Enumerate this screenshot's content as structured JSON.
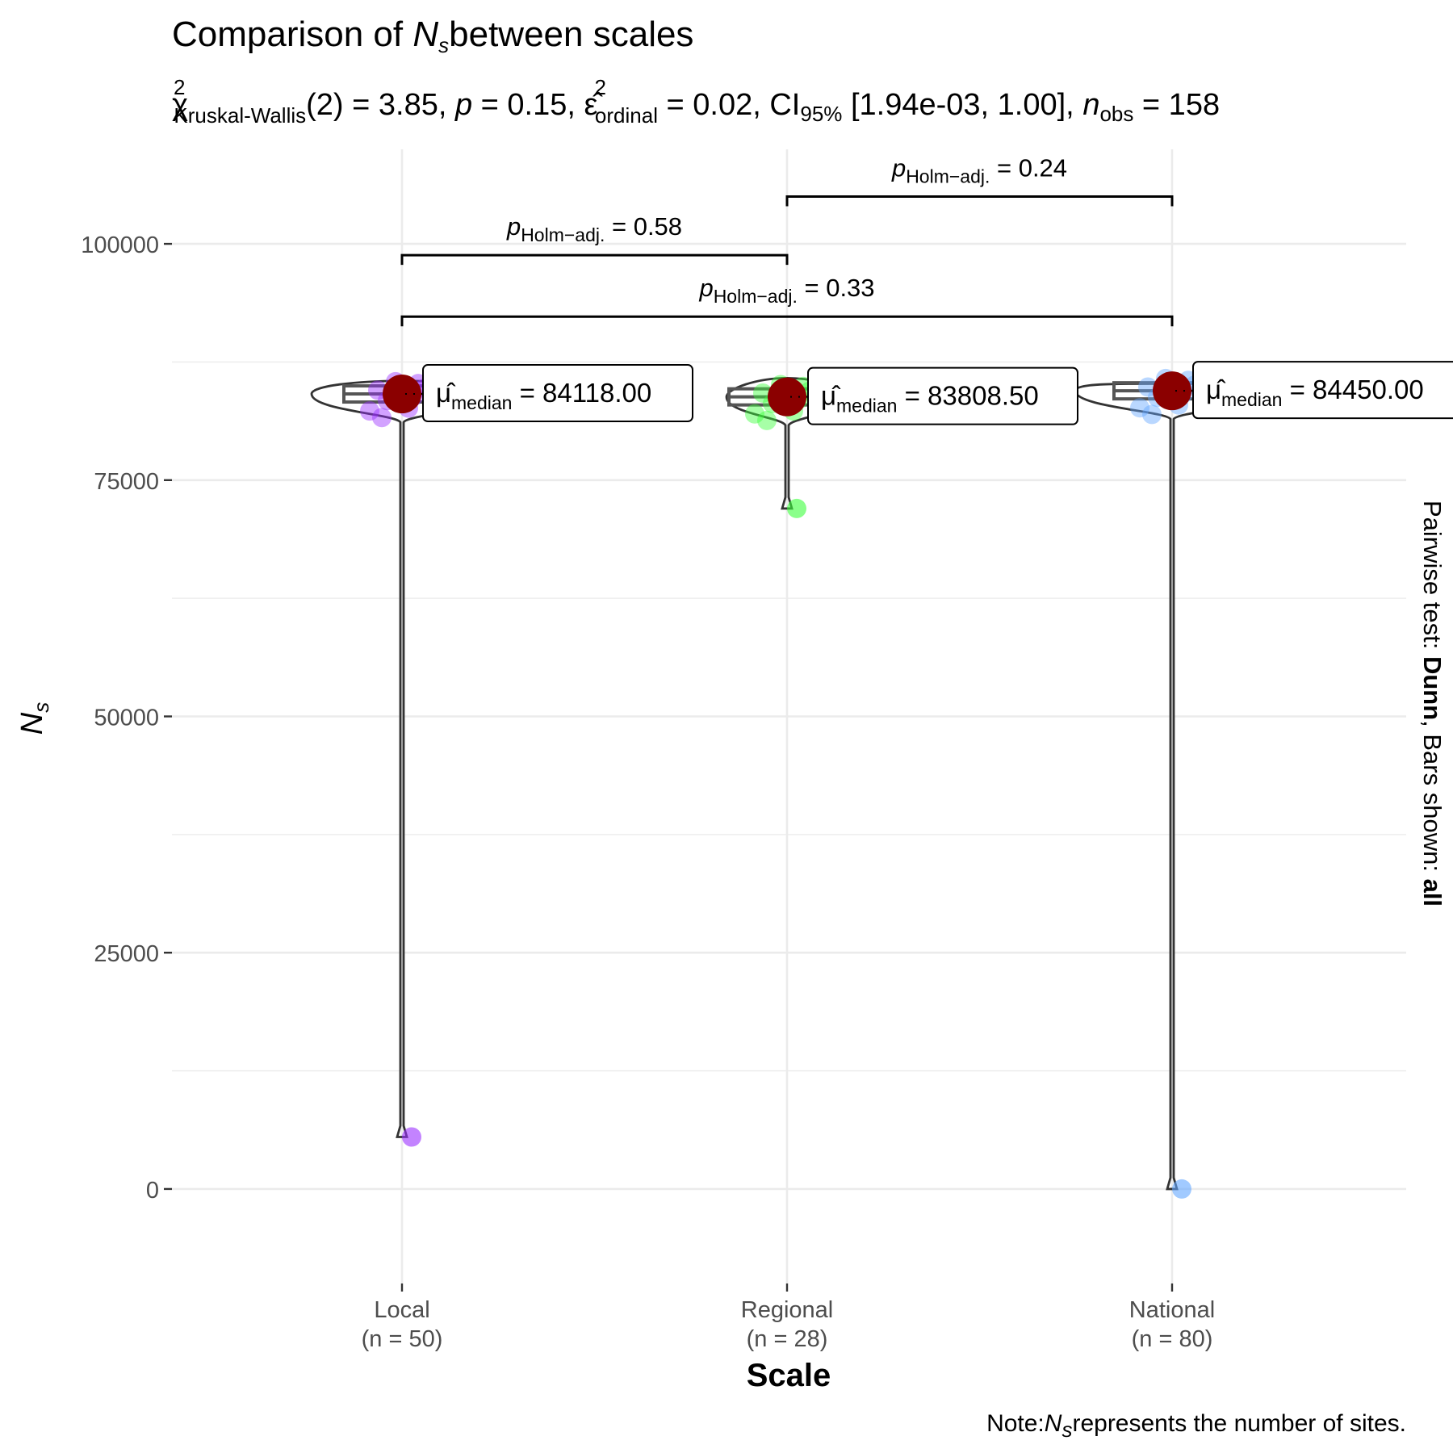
{
  "chart_data": {
    "type": "violin",
    "title_prefix": "Comparison of ",
    "title_symbol": "N",
    "title_symbol_sub": "s",
    "title_suffix": "between scales",
    "subtitle": {
      "chi": "χ",
      "chi_sup": "2",
      "chi_sub": "Kruskal-Wallis",
      "df": "(2) = 3.85, ",
      "p_sym": "p",
      "p_val": " = 0.15, ",
      "eps": "ε̂",
      "eps_sup": "2",
      "eps_sub": "ordinal",
      "eps_val": " = 0.02, CI",
      "ci_sub": "95%",
      "ci_val": " [1.94e-03, 1.00], ",
      "n_sym": "n",
      "n_sub": "obs",
      "n_val": " = 158"
    },
    "xlabel": "Scale",
    "ylabel_symbol": "N",
    "ylabel_sub": "s",
    "ylim": [
      -10000,
      110000
    ],
    "yticks": [
      0,
      25000,
      50000,
      75000,
      100000
    ],
    "ytick_labels": [
      "0",
      "25000",
      "50000",
      "75000",
      "100000"
    ],
    "categories": [
      {
        "name": "Local",
        "n_label": "(n = 50)",
        "color": "#9b30ff",
        "median": 84118.0,
        "median_label": "84118.00",
        "min": 5500,
        "max": 85500
      },
      {
        "name": "Regional",
        "n_label": "(n = 28)",
        "color": "#3cff3c",
        "median": 83808.5,
        "median_label": "83808.50",
        "min": 72000,
        "max": 85800
      },
      {
        "name": "National",
        "n_label": "(n = 80)",
        "color": "#63a6ff",
        "median": 84450.0,
        "median_label": "84450.00",
        "min": 0,
        "max": 85200
      }
    ],
    "median_label_prefix": "μ̂",
    "median_label_sub": "median",
    "median_label_eq": " = ",
    "outliers": [
      {
        "category": "Local",
        "y": 5500
      },
      {
        "category": "Regional",
        "y": 72000
      },
      {
        "category": "National",
        "y": 0
      }
    ],
    "pairwise": [
      {
        "from": "Regional",
        "to": "National",
        "y": 105000,
        "p_label": " = 0.24"
      },
      {
        "from": "Local",
        "to": "Regional",
        "y": 98800,
        "p_label": " = 0.58"
      },
      {
        "from": "Local",
        "to": "National",
        "y": 92300,
        "p_label": " = 0.33"
      }
    ],
    "pairwise_p_sym": "p",
    "pairwise_p_sub": "Holm−adj.",
    "caption_prefix": "Note:",
    "caption_symbol": "N",
    "caption_sub": "s",
    "caption_suffix": "represents the number of sites.",
    "side_label_prefix": "Pairwise test: ",
    "side_label_test": "Dunn",
    "side_label_mid": ", Bars shown: ",
    "side_label_bars": "all",
    "median_point_color": "#8b0000",
    "grid": true,
    "legend": "none"
  }
}
